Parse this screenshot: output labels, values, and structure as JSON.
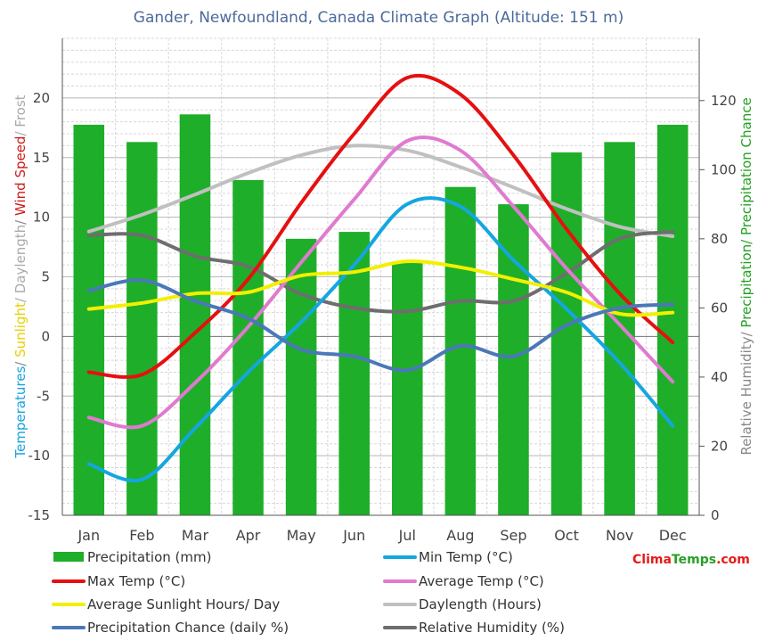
{
  "chart_data": {
    "type": "bar+line",
    "title": "Gander, Newfoundland, Canada Climate Graph (Altitude: 151 m)",
    "categories": [
      "Jan",
      "Feb",
      "Mar",
      "Apr",
      "May",
      "Jun",
      "Jul",
      "Aug",
      "Sep",
      "Oct",
      "Nov",
      "Dec"
    ],
    "y_left": {
      "label_parts": [
        {
          "text": "Temperatures",
          "color": "#1aa3df"
        },
        {
          "text": "/ ",
          "color": "#888888"
        },
        {
          "text": "Sunlight",
          "color": "#e6d000"
        },
        {
          "text": "/ Daylength",
          "color": "#aaaaaa"
        },
        {
          "text": "/ ",
          "color": "#888888"
        },
        {
          "text": "Wind Speed",
          "color": "#cc1a1a"
        },
        {
          "text": "/ Frost",
          "color": "#aaaaaa"
        }
      ],
      "ylim": [
        -15,
        25
      ],
      "ticks": [
        -15,
        -10,
        -5,
        0,
        5,
        10,
        15,
        20
      ]
    },
    "y_right": {
      "label_parts": [
        {
          "text": "Relative Humidity/ ",
          "color": "#888888"
        },
        {
          "text": "Precipitation/ Precipitation Chance",
          "color": "#26a026"
        }
      ],
      "ylim": [
        0,
        138
      ],
      "ticks": [
        0,
        20,
        40,
        60,
        80,
        100,
        120
      ]
    },
    "grid": true,
    "series": [
      {
        "key": "precip",
        "name": "Precipitation (mm)",
        "type": "bar",
        "axis": "right",
        "color": "#1fae2a",
        "values": [
          113,
          108,
          116,
          97,
          80,
          82,
          73,
          95,
          90,
          105,
          108,
          113
        ]
      },
      {
        "key": "daylength",
        "name": "Daylength (Hours)",
        "type": "line",
        "axis": "left",
        "color": "#c0c0c0",
        "values": [
          8.8,
          10.2,
          11.9,
          13.7,
          15.2,
          16.0,
          15.6,
          14.2,
          12.5,
          10.7,
          9.2,
          8.4
        ]
      },
      {
        "key": "humidity",
        "name": "Relative Humidity (%)",
        "type": "line",
        "axis": "right",
        "color": "#6e6e6e",
        "values": [
          81,
          81,
          75,
          72,
          64,
          60,
          59,
          62,
          62,
          70,
          80,
          82
        ]
      },
      {
        "key": "maxtemp",
        "name": "Max Temp (°C)",
        "type": "line",
        "axis": "left",
        "color": "#e51010",
        "values": [
          -3.0,
          -3.2,
          0.3,
          4.8,
          11.2,
          17.0,
          21.7,
          20.3,
          15.2,
          9.0,
          3.6,
          -0.5
        ]
      },
      {
        "key": "avgtemp",
        "name": "Average Temp (°C)",
        "type": "line",
        "axis": "left",
        "color": "#e07ad0",
        "values": [
          -6.8,
          -7.5,
          -3.9,
          0.8,
          6.2,
          11.5,
          16.4,
          15.6,
          10.9,
          5.7,
          1.0,
          -3.8
        ]
      },
      {
        "key": "mintemp",
        "name": "Min Temp (°C)",
        "type": "line",
        "axis": "left",
        "color": "#14a6e0",
        "values": [
          -10.7,
          -12.0,
          -7.7,
          -3.0,
          1.2,
          6.0,
          11.1,
          10.9,
          6.4,
          2.3,
          -2.2,
          -7.5
        ]
      },
      {
        "key": "sunlight",
        "name": "Average Sunlight Hours/ Day",
        "type": "line",
        "axis": "left",
        "color": "#f2f000",
        "values": [
          2.3,
          2.8,
          3.6,
          3.7,
          5.1,
          5.4,
          6.3,
          5.8,
          4.8,
          3.7,
          1.9,
          2.0
        ]
      },
      {
        "key": "precipchance",
        "name": "Precipitation Chance (daily %)",
        "type": "line",
        "axis": "right",
        "color": "#4a78b8",
        "values": [
          65,
          68,
          62,
          57,
          48,
          46,
          42,
          49,
          46,
          55,
          60,
          61
        ]
      }
    ],
    "legend": {
      "position": "bottom",
      "rows": [
        [
          "precip",
          "mintemp"
        ],
        [
          "maxtemp",
          "avgtemp"
        ],
        [
          "sunlight",
          "daylength"
        ],
        [
          "precipchance",
          "humidity"
        ]
      ]
    }
  },
  "branding": {
    "part1": "Clima",
    "part2": "Temps",
    "part3": ".com"
  }
}
